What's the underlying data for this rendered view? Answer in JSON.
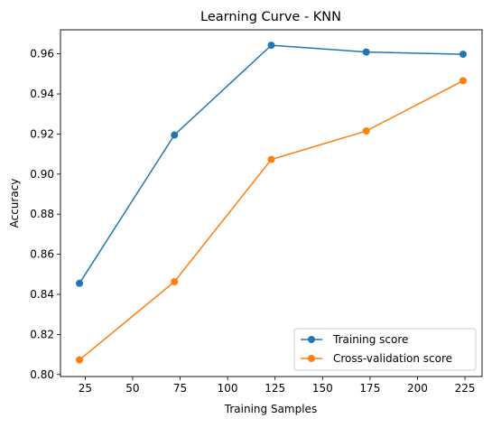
{
  "chart_data": {
    "type": "line",
    "title": "Learning Curve - KNN",
    "xlabel": "Training Samples",
    "ylabel": "Accuracy",
    "x": [
      22,
      72,
      123,
      173,
      224
    ],
    "xlim": [
      12,
      234
    ],
    "ylim": [
      0.799,
      0.972
    ],
    "xticks": [
      25,
      50,
      75,
      100,
      125,
      150,
      175,
      200,
      225
    ],
    "yticks": [
      0.8,
      0.82,
      0.84,
      0.86,
      0.88,
      0.9,
      0.92,
      0.94,
      0.96
    ],
    "grid": false,
    "legend_position": "lower-right",
    "series": [
      {
        "name": "Training score",
        "color": "#1f77b4",
        "marker": "circle",
        "values": [
          0.8455,
          0.9195,
          0.9643,
          0.9609,
          0.9598
        ]
      },
      {
        "name": "Cross-validation score",
        "color": "#ff7f0e",
        "marker": "circle",
        "values": [
          0.8073,
          0.8463,
          0.9073,
          0.9215,
          0.9466
        ]
      }
    ]
  }
}
